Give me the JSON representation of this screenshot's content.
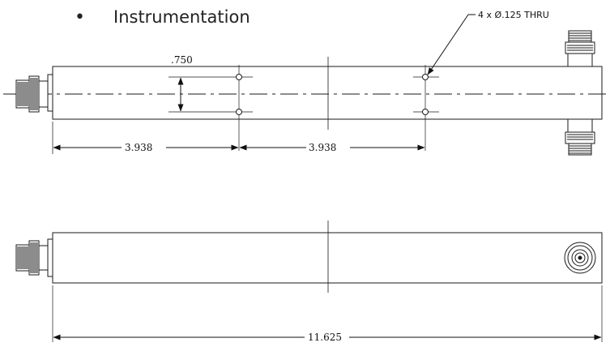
{
  "bullet": {
    "symbol": "•",
    "text": "Instrumentation"
  },
  "callout": {
    "label": "4 x Ø.125 THRU"
  },
  "dimensions": {
    "hole_spacing": ".750",
    "left_span": "3.938",
    "right_span": "3.938",
    "overall_length": "11.625"
  },
  "colors": {
    "line": "#1a1a1a",
    "text": "#111111"
  },
  "icons": {
    "connector_side": "n-connector-icon",
    "connector_top": "n-connector-icon",
    "connector_end": "connector-end-view-icon"
  }
}
